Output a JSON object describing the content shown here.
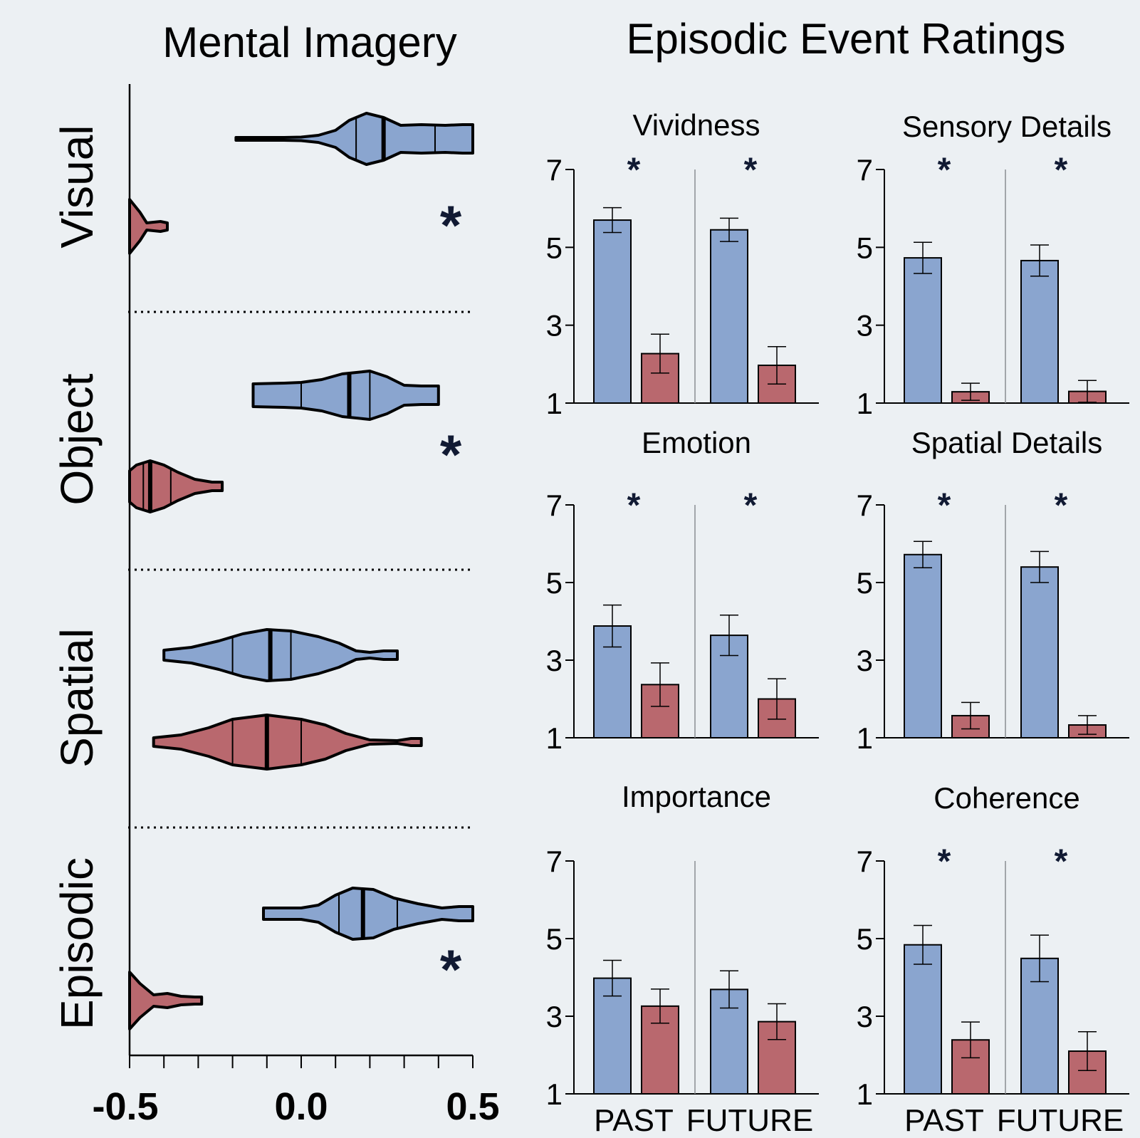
{
  "titles": {
    "left": "Mental Imagery",
    "right": "Episodic Event Ratings"
  },
  "colors": {
    "blue": "#8aa5cf",
    "red": "#b9686e",
    "background": "#ecf0f3",
    "star": "#111a33"
  },
  "chart_data": [
    {
      "type": "violin",
      "title": "Mental Imagery",
      "orientation": "horizontal",
      "xlim": [
        -0.5,
        0.5
      ],
      "xticks": [
        "-0.5",
        "0.0",
        "0.5"
      ],
      "groups": [
        {
          "label": "Visual",
          "significant": "*",
          "series": [
            {
              "color": "blue",
              "min": -0.19,
              "max": 0.5,
              "q1": 0.16,
              "median": 0.24,
              "q3": 0.39,
              "profile": [
                [
                  -0.19,
                  0.02
                ],
                [
                  -0.05,
                  0.02
                ],
                [
                  0.0,
                  0.025
                ],
                [
                  0.05,
                  0.05
                ],
                [
                  0.1,
                  0.12
                ],
                [
                  0.14,
                  0.26
                ],
                [
                  0.19,
                  0.36
                ],
                [
                  0.24,
                  0.3
                ],
                [
                  0.29,
                  0.19
                ],
                [
                  0.35,
                  0.2
                ],
                [
                  0.42,
                  0.19
                ],
                [
                  0.47,
                  0.2
                ],
                [
                  0.5,
                  0.2
                ]
              ]
            },
            {
              "color": "red",
              "min": -0.5,
              "max": -0.39,
              "q1": -0.5,
              "median": -0.5,
              "q3": -0.5,
              "profile": [
                [
                  -0.5,
                  0.38
                ],
                [
                  -0.47,
                  0.2
                ],
                [
                  -0.45,
                  0.05
                ],
                [
                  -0.43,
                  0.06
                ],
                [
                  -0.41,
                  0.07
                ],
                [
                  -0.39,
                  0.05
                ]
              ]
            }
          ]
        },
        {
          "label": "Object",
          "significant": "*",
          "series": [
            {
              "color": "blue",
              "min": -0.14,
              "max": 0.4,
              "q1": 0.0,
              "median": 0.14,
              "q3": 0.2,
              "profile": [
                [
                  -0.14,
                  0.16
                ],
                [
                  -0.05,
                  0.17
                ],
                [
                  0.0,
                  0.18
                ],
                [
                  0.06,
                  0.22
                ],
                [
                  0.12,
                  0.3
                ],
                [
                  0.2,
                  0.34
                ],
                [
                  0.25,
                  0.26
                ],
                [
                  0.3,
                  0.14
                ],
                [
                  0.35,
                  0.13
                ],
                [
                  0.4,
                  0.13
                ]
              ]
            },
            {
              "color": "red",
              "min": -0.5,
              "max": -0.23,
              "q1": -0.46,
              "median": -0.44,
              "q3": -0.38,
              "profile": [
                [
                  -0.5,
                  0.22
                ],
                [
                  -0.48,
                  0.3
                ],
                [
                  -0.44,
                  0.36
                ],
                [
                  -0.4,
                  0.3
                ],
                [
                  -0.36,
                  0.2
                ],
                [
                  -0.31,
                  0.1
                ],
                [
                  -0.26,
                  0.06
                ],
                [
                  -0.23,
                  0.06
                ]
              ]
            }
          ]
        },
        {
          "label": "Spatial",
          "significant": "",
          "series": [
            {
              "color": "blue",
              "min": -0.4,
              "max": 0.28,
              "q1": -0.2,
              "median": -0.09,
              "q3": -0.03,
              "profile": [
                [
                  -0.4,
                  0.07
                ],
                [
                  -0.32,
                  0.11
                ],
                [
                  -0.24,
                  0.2
                ],
                [
                  -0.17,
                  0.3
                ],
                [
                  -0.1,
                  0.36
                ],
                [
                  -0.03,
                  0.34
                ],
                [
                  0.05,
                  0.26
                ],
                [
                  0.11,
                  0.17
                ],
                [
                  0.16,
                  0.06
                ],
                [
                  0.2,
                  0.04
                ],
                [
                  0.24,
                  0.06
                ],
                [
                  0.28,
                  0.06
                ]
              ]
            },
            {
              "color": "red",
              "min": -0.43,
              "max": 0.35,
              "q1": -0.2,
              "median": -0.1,
              "q3": 0.0,
              "profile": [
                [
                  -0.43,
                  0.06
                ],
                [
                  -0.35,
                  0.1
                ],
                [
                  -0.27,
                  0.2
                ],
                [
                  -0.2,
                  0.32
                ],
                [
                  -0.1,
                  0.38
                ],
                [
                  0.0,
                  0.32
                ],
                [
                  0.07,
                  0.24
                ],
                [
                  0.13,
                  0.12
                ],
                [
                  0.2,
                  0.03
                ],
                [
                  0.28,
                  0.02
                ],
                [
                  0.32,
                  0.05
                ],
                [
                  0.35,
                  0.05
                ]
              ]
            }
          ]
        },
        {
          "label": "Episodic",
          "significant": "*",
          "series": [
            {
              "color": "blue",
              "min": -0.11,
              "max": 0.5,
              "q1": 0.11,
              "median": 0.18,
              "q3": 0.28,
              "profile": [
                [
                  -0.11,
                  0.08
                ],
                [
                  0.0,
                  0.08
                ],
                [
                  0.05,
                  0.12
                ],
                [
                  0.1,
                  0.26
                ],
                [
                  0.15,
                  0.36
                ],
                [
                  0.21,
                  0.34
                ],
                [
                  0.27,
                  0.22
                ],
                [
                  0.34,
                  0.14
                ],
                [
                  0.41,
                  0.08
                ],
                [
                  0.46,
                  0.1
                ],
                [
                  0.5,
                  0.1
                ]
              ]
            },
            {
              "color": "red",
              "min": -0.5,
              "max": -0.29,
              "q1": -0.5,
              "median": -0.5,
              "q3": -0.5,
              "profile": [
                [
                  -0.5,
                  0.4
                ],
                [
                  -0.47,
                  0.24
                ],
                [
                  -0.43,
                  0.08
                ],
                [
                  -0.39,
                  0.1
                ],
                [
                  -0.35,
                  0.06
                ],
                [
                  -0.31,
                  0.05
                ],
                [
                  -0.29,
                  0.05
                ]
              ]
            }
          ]
        }
      ]
    },
    {
      "type": "bar",
      "title": "Episodic Event Ratings",
      "categories": [
        "PAST",
        "FUTURE"
      ],
      "ylim": [
        1,
        7
      ],
      "yticks": [
        "1",
        "3",
        "5",
        "7"
      ],
      "panels": [
        {
          "title": "Vividness",
          "significant": "*",
          "series": [
            {
              "color": "blue",
              "values": [
                5.7,
                5.45
              ],
              "errors": [
                0.32,
                0.3
              ]
            },
            {
              "color": "red",
              "values": [
                2.27,
                1.97
              ],
              "errors": [
                0.5,
                0.48
              ]
            }
          ]
        },
        {
          "title": "Sensory Details",
          "significant": "*",
          "series": [
            {
              "color": "blue",
              "values": [
                4.73,
                4.66
              ],
              "errors": [
                0.4,
                0.4
              ]
            },
            {
              "color": "red",
              "values": [
                1.29,
                1.3
              ],
              "errors": [
                0.22,
                0.28
              ]
            }
          ]
        },
        {
          "title": "Emotion",
          "significant": "*",
          "series": [
            {
              "color": "blue",
              "values": [
                3.88,
                3.64
              ],
              "errors": [
                0.54,
                0.52
              ]
            },
            {
              "color": "red",
              "values": [
                2.37,
                2.0
              ],
              "errors": [
                0.56,
                0.52
              ]
            }
          ]
        },
        {
          "title": "Spatial Details",
          "significant": "*",
          "series": [
            {
              "color": "blue",
              "values": [
                5.72,
                5.4
              ],
              "errors": [
                0.34,
                0.4
              ]
            },
            {
              "color": "red",
              "values": [
                1.57,
                1.33
              ],
              "errors": [
                0.34,
                0.24
              ]
            }
          ]
        },
        {
          "title": "Importance",
          "significant": "",
          "series": [
            {
              "color": "blue",
              "values": [
                3.98,
                3.69
              ],
              "errors": [
                0.46,
                0.48
              ]
            },
            {
              "color": "red",
              "values": [
                3.26,
                2.86
              ],
              "errors": [
                0.44,
                0.46
              ]
            }
          ]
        },
        {
          "title": "Coherence",
          "significant": "*",
          "series": [
            {
              "color": "blue",
              "values": [
                4.84,
                4.49
              ],
              "errors": [
                0.5,
                0.6
              ]
            },
            {
              "color": "red",
              "values": [
                2.39,
                2.1
              ],
              "errors": [
                0.46,
                0.5
              ]
            }
          ]
        }
      ]
    }
  ]
}
